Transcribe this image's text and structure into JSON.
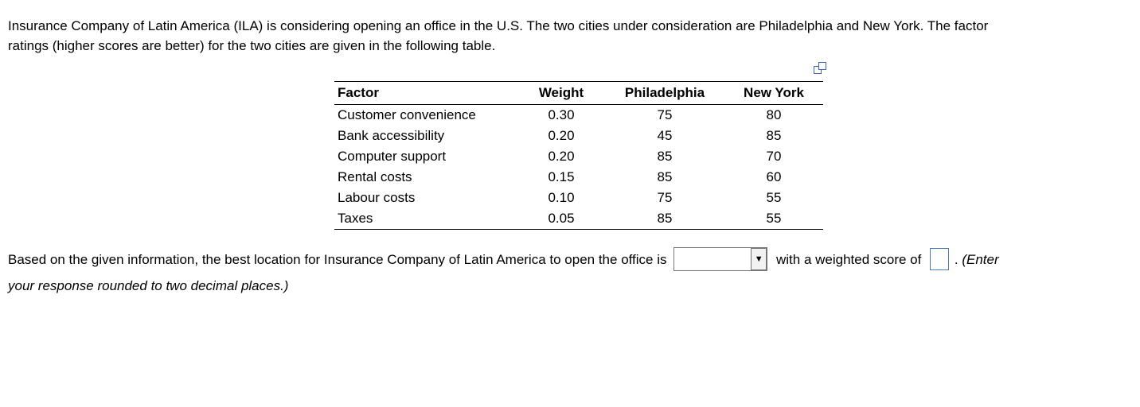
{
  "intro": {
    "line1": "Insurance Company of Latin America (ILA) is considering opening an office in the U.S. The two cities under consideration are Philadelphia and New York. The factor",
    "line2": "ratings (higher scores are better) for the two cities are given in the following table."
  },
  "table": {
    "headers": [
      "Factor",
      "Weight",
      "Philadelphia",
      "New York"
    ],
    "rows": [
      [
        "Customer convenience",
        "0.30",
        "75",
        "80"
      ],
      [
        "Bank accessibility",
        "0.20",
        "45",
        "85"
      ],
      [
        "Computer support",
        "0.20",
        "85",
        "70"
      ],
      [
        "Rental costs",
        "0.15",
        "85",
        "60"
      ],
      [
        "Labour costs",
        "0.10",
        "75",
        "55"
      ],
      [
        "Taxes",
        "0.05",
        "85",
        "55"
      ]
    ]
  },
  "question": {
    "text_before_dropdown": "Based on the given information, the best location for Insurance Company of Latin America to open the office is",
    "dropdown_value": "",
    "text_after_dropdown": "with a weighted score of",
    "period": ".",
    "note_line1": "(Enter",
    "note_line2": "your response rounded to two decimal places.)"
  },
  "icons": {
    "dropdown_arrow": "▼",
    "copy_icon": "overlapping-squares"
  },
  "colors": {
    "table_border": "#000000",
    "input_border": "#4a7ab5",
    "icon_blue": "#4066b0",
    "dropdown_border": "#767676"
  }
}
